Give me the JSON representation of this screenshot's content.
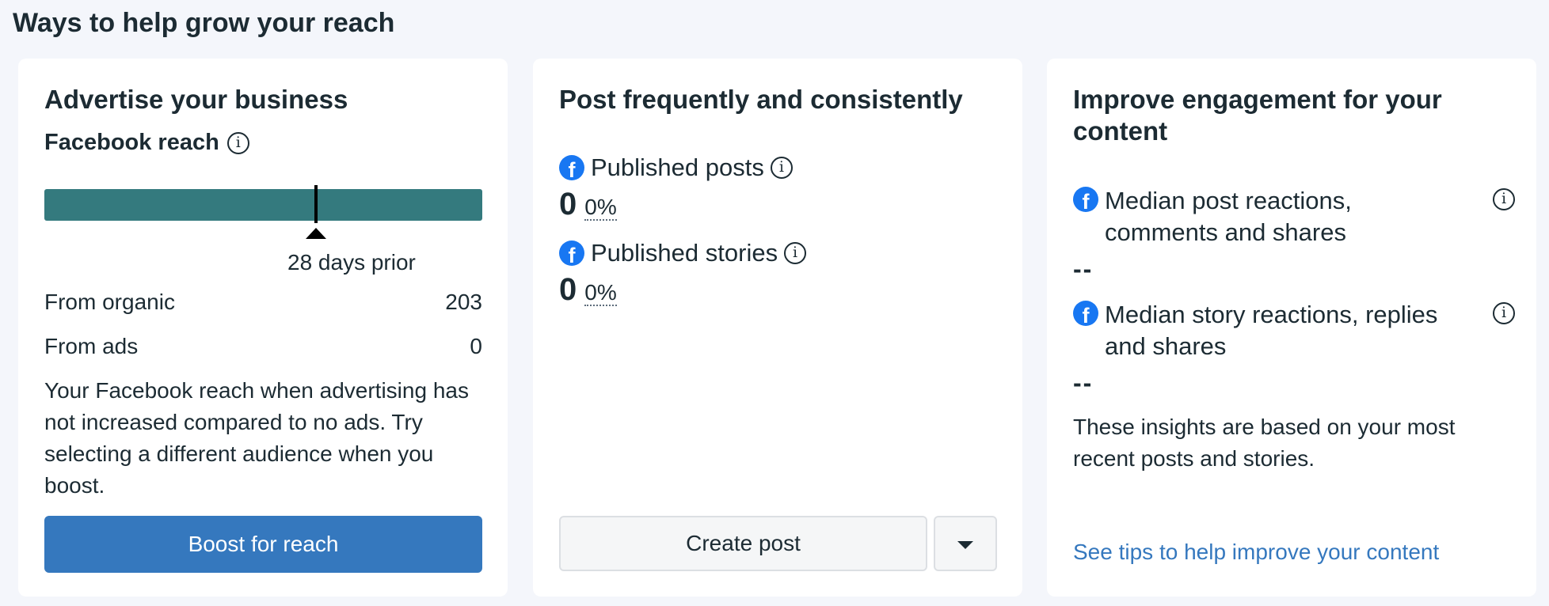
{
  "page": {
    "title": "Ways to help grow your reach"
  },
  "advertise": {
    "title": "Advertise your business",
    "reach_label": "Facebook reach",
    "reach_caption": "28 days prior",
    "stats": [
      {
        "label": "From organic",
        "value": "203"
      },
      {
        "label": "From ads",
        "value": "0"
      }
    ],
    "description": "Your Facebook reach when advertising has not increased compared to no ads. Try selecting a different audience when you boost.",
    "button_label": "Boost for reach",
    "bar_color": "#347a7e",
    "button_color": "#3578be"
  },
  "post": {
    "title": "Post frequently and consistently",
    "metrics": [
      {
        "label": "Published posts",
        "value": "0",
        "change": "0%"
      },
      {
        "label": "Published stories",
        "value": "0",
        "change": "0%"
      }
    ],
    "create_button_label": "Create post"
  },
  "engagement": {
    "title": "Improve engagement for your content",
    "metrics": [
      {
        "label": "Median post reactions, comments and shares",
        "value": "--"
      },
      {
        "label": "Median story reactions, replies and shares",
        "value": "--"
      }
    ],
    "note": "These insights are based on your most recent posts and stories.",
    "link_label": "See tips to help improve your content",
    "link_color": "#3578be"
  },
  "icons": {
    "info": "i",
    "facebook": "f"
  }
}
